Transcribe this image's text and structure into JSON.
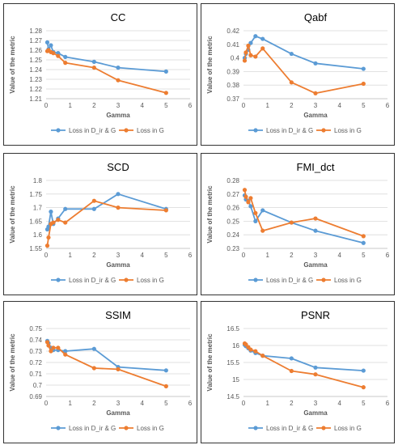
{
  "colors": {
    "series_blue": "#5b9bd5",
    "series_orange": "#ed7d31",
    "gridline": "#d9d9d9",
    "axis_text": "#595959",
    "title_text": "#000000",
    "border": "#333333"
  },
  "legend_labels": [
    "Loss in D_ir & G",
    "Loss in G"
  ],
  "chart_data": [
    {
      "type": "line",
      "title": "CC",
      "xlabel": "Gamma",
      "ylabel": "Value of the metric",
      "xlim": [
        0,
        6
      ],
      "ylim": [
        1.21,
        1.28
      ],
      "xticks": [
        0,
        1,
        2,
        3,
        4,
        5,
        6
      ],
      "yticks": [
        1.21,
        1.22,
        1.23,
        1.24,
        1.25,
        1.26,
        1.27,
        1.28
      ],
      "ytick_labels": [
        "1.21",
        "1.22",
        "1.23",
        "1.24",
        "1.25",
        "1.26",
        "1.27",
        "1.28"
      ],
      "legend": "bottom",
      "series": [
        {
          "name": "Loss in D_ir & G",
          "x": [
            0.05,
            0.1,
            0.2,
            0.3,
            0.5,
            0.8,
            2,
            3,
            5
          ],
          "y": [
            1.268,
            1.261,
            1.265,
            1.258,
            1.257,
            1.253,
            1.248,
            1.242,
            1.238
          ]
        },
        {
          "name": "Loss in G",
          "x": [
            0.05,
            0.1,
            0.2,
            0.3,
            0.5,
            0.8,
            2,
            3,
            5
          ],
          "y": [
            1.259,
            1.26,
            1.258,
            1.257,
            1.254,
            1.247,
            1.242,
            1.229,
            1.216
          ]
        }
      ]
    },
    {
      "type": "line",
      "title": "Qabf",
      "xlabel": "Gamma",
      "ylabel": "Value of the metric",
      "xlim": [
        0,
        6
      ],
      "ylim": [
        0.37,
        0.42
      ],
      "xticks": [
        0,
        1,
        2,
        3,
        4,
        5,
        6
      ],
      "yticks": [
        0.37,
        0.38,
        0.39,
        0.4,
        0.41,
        0.42
      ],
      "ytick_labels": [
        "0.37",
        "0.38",
        "0.39",
        "0.4",
        "0.41",
        "0.42"
      ],
      "legend": "bottom",
      "series": [
        {
          "name": "Loss in D_ir & G",
          "x": [
            0.05,
            0.1,
            0.2,
            0.3,
            0.5,
            0.8,
            2,
            3,
            5
          ],
          "y": [
            0.4,
            0.403,
            0.406,
            0.411,
            0.416,
            0.414,
            0.403,
            0.396,
            0.392
          ]
        },
        {
          "name": "Loss in G",
          "x": [
            0.05,
            0.1,
            0.2,
            0.3,
            0.5,
            0.8,
            2,
            3,
            5
          ],
          "y": [
            0.398,
            0.404,
            0.409,
            0.402,
            0.401,
            0.407,
            0.382,
            0.374,
            0.381
          ]
        }
      ]
    },
    {
      "type": "line",
      "title": "SCD",
      "xlabel": "Gamma",
      "ylabel": "Value of the metric",
      "xlim": [
        0,
        6
      ],
      "ylim": [
        1.55,
        1.8
      ],
      "xticks": [
        0,
        1,
        2,
        3,
        4,
        5,
        6
      ],
      "yticks": [
        1.55,
        1.6,
        1.65,
        1.7,
        1.75,
        1.8
      ],
      "ytick_labels": [
        "1.55",
        "1.6",
        "1.65",
        "1.7",
        "1.75",
        "1.8"
      ],
      "legend": "bottom",
      "series": [
        {
          "name": "Loss in D_ir & G",
          "x": [
            0.05,
            0.1,
            0.2,
            0.3,
            0.5,
            0.8,
            2,
            3,
            5
          ],
          "y": [
            1.62,
            1.63,
            1.685,
            1.64,
            1.66,
            1.695,
            1.695,
            1.75,
            1.695
          ]
        },
        {
          "name": "Loss in G",
          "x": [
            0.05,
            0.1,
            0.2,
            0.3,
            0.5,
            0.8,
            2,
            3,
            5
          ],
          "y": [
            1.56,
            1.59,
            1.64,
            1.645,
            1.655,
            1.645,
            1.725,
            1.7,
            1.69
          ]
        }
      ]
    },
    {
      "type": "line",
      "title": "FMI_dct",
      "xlabel": "Gamma",
      "ylabel": "Value of the metric",
      "xlim": [
        0,
        6
      ],
      "ylim": [
        0.23,
        0.28
      ],
      "xticks": [
        0,
        1,
        2,
        3,
        4,
        5,
        6
      ],
      "yticks": [
        0.23,
        0.24,
        0.25,
        0.26,
        0.27,
        0.28
      ],
      "ytick_labels": [
        "0.23",
        "0.24",
        "0.25",
        "0.26",
        "0.27",
        "0.28"
      ],
      "legend": "bottom",
      "series": [
        {
          "name": "Loss in D_ir & G",
          "x": [
            0.05,
            0.1,
            0.2,
            0.3,
            0.5,
            0.8,
            2,
            3,
            5
          ],
          "y": [
            0.269,
            0.266,
            0.265,
            0.261,
            0.25,
            0.258,
            0.249,
            0.243,
            0.234
          ]
        },
        {
          "name": "Loss in G",
          "x": [
            0.05,
            0.1,
            0.2,
            0.3,
            0.5,
            0.8,
            2,
            3,
            5
          ],
          "y": [
            0.273,
            0.268,
            0.264,
            0.267,
            0.256,
            0.243,
            0.249,
            0.252,
            0.239
          ]
        }
      ]
    },
    {
      "type": "line",
      "title": "SSIM",
      "xlabel": "Gamma",
      "ylabel": "Value of the metric",
      "xlim": [
        0,
        6
      ],
      "ylim": [
        0.69,
        0.75
      ],
      "xticks": [
        0,
        1,
        2,
        3,
        4,
        5,
        6
      ],
      "yticks": [
        0.69,
        0.7,
        0.71,
        0.72,
        0.73,
        0.74,
        0.75
      ],
      "ytick_labels": [
        "0.69",
        "0.7",
        "0.71",
        "0.72",
        "0.73",
        "0.74",
        "0.75"
      ],
      "legend": "bottom",
      "series": [
        {
          "name": "Loss in D_ir & G",
          "x": [
            0.05,
            0.1,
            0.2,
            0.3,
            0.5,
            0.8,
            2,
            3,
            5
          ],
          "y": [
            0.739,
            0.737,
            0.733,
            0.731,
            0.731,
            0.73,
            0.732,
            0.716,
            0.713
          ]
        },
        {
          "name": "Loss in G",
          "x": [
            0.05,
            0.1,
            0.2,
            0.3,
            0.5,
            0.8,
            2,
            3,
            5
          ],
          "y": [
            0.738,
            0.735,
            0.73,
            0.733,
            0.733,
            0.727,
            0.715,
            0.714,
            0.699
          ]
        }
      ]
    },
    {
      "type": "line",
      "title": "PSNR",
      "xlabel": "Gamma",
      "ylabel": "Value of the metric",
      "xlim": [
        0,
        6
      ],
      "ylim": [
        14.5,
        16.5
      ],
      "xticks": [
        0,
        1,
        2,
        3,
        4,
        5,
        6
      ],
      "yticks": [
        14.5,
        15.0,
        15.5,
        16.0,
        16.5
      ],
      "ytick_labels": [
        "14.5",
        "15",
        "15.5",
        "16",
        "16.5"
      ],
      "legend": "bottom",
      "series": [
        {
          "name": "Loss in D_ir & G",
          "x": [
            0.05,
            0.1,
            0.2,
            0.3,
            0.5,
            0.8,
            2,
            3,
            5
          ],
          "y": [
            16.02,
            15.98,
            15.92,
            15.85,
            15.78,
            15.7,
            15.62,
            15.35,
            15.26
          ]
        },
        {
          "name": "Loss in G",
          "x": [
            0.05,
            0.1,
            0.2,
            0.3,
            0.5,
            0.8,
            2,
            3,
            5
          ],
          "y": [
            16.06,
            16.03,
            15.95,
            15.88,
            15.83,
            15.7,
            15.25,
            15.15,
            14.77
          ]
        }
      ]
    }
  ]
}
